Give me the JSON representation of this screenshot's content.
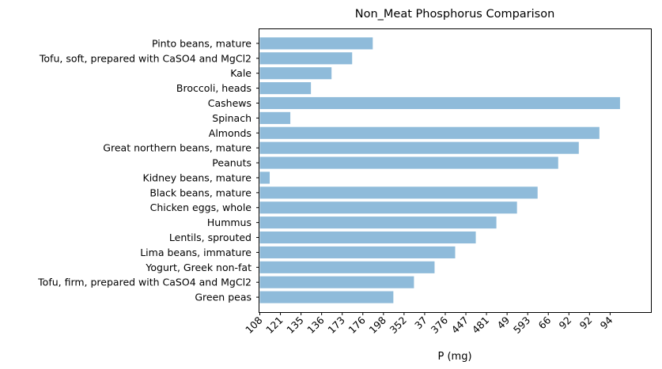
{
  "chart_data": {
    "type": "bar",
    "orientation": "horizontal",
    "title": "Non_Meat Phosphorus Comparison",
    "xlabel": "P (mg)",
    "ylabel": "",
    "categories": [
      "Green peas",
      "Tofu, firm, prepared with CaSO4 and MgCl2",
      "Yogurt, Greek non-fat",
      "Lima beans, immature",
      "Lentils, sprouted",
      "Hummus",
      "Chicken eggs, whole",
      "Black beans, mature",
      "Kidney beans, mature",
      "Peanuts",
      "Great northern beans, mature",
      "Almonds",
      "Spinach",
      "Cashews",
      "Broccoli, heads",
      "Kale",
      "Tofu, soft, prepared with CaSO4 and MgCl2",
      "Pinto beans, mature"
    ],
    "values": [
      108,
      121,
      135,
      136,
      173,
      176,
      198,
      352,
      37,
      376,
      447,
      481,
      49,
      593,
      66,
      92,
      92,
      94
    ],
    "x_ticklabels": [
      "108",
      "121",
      "135",
      "136",
      "173",
      "176",
      "198",
      "352",
      "37",
      "376",
      "447",
      "481",
      "49",
      "593",
      "66",
      "92",
      "92",
      "94"
    ],
    "bar_color": "#8fbbda",
    "grid": false,
    "legend": "none"
  }
}
